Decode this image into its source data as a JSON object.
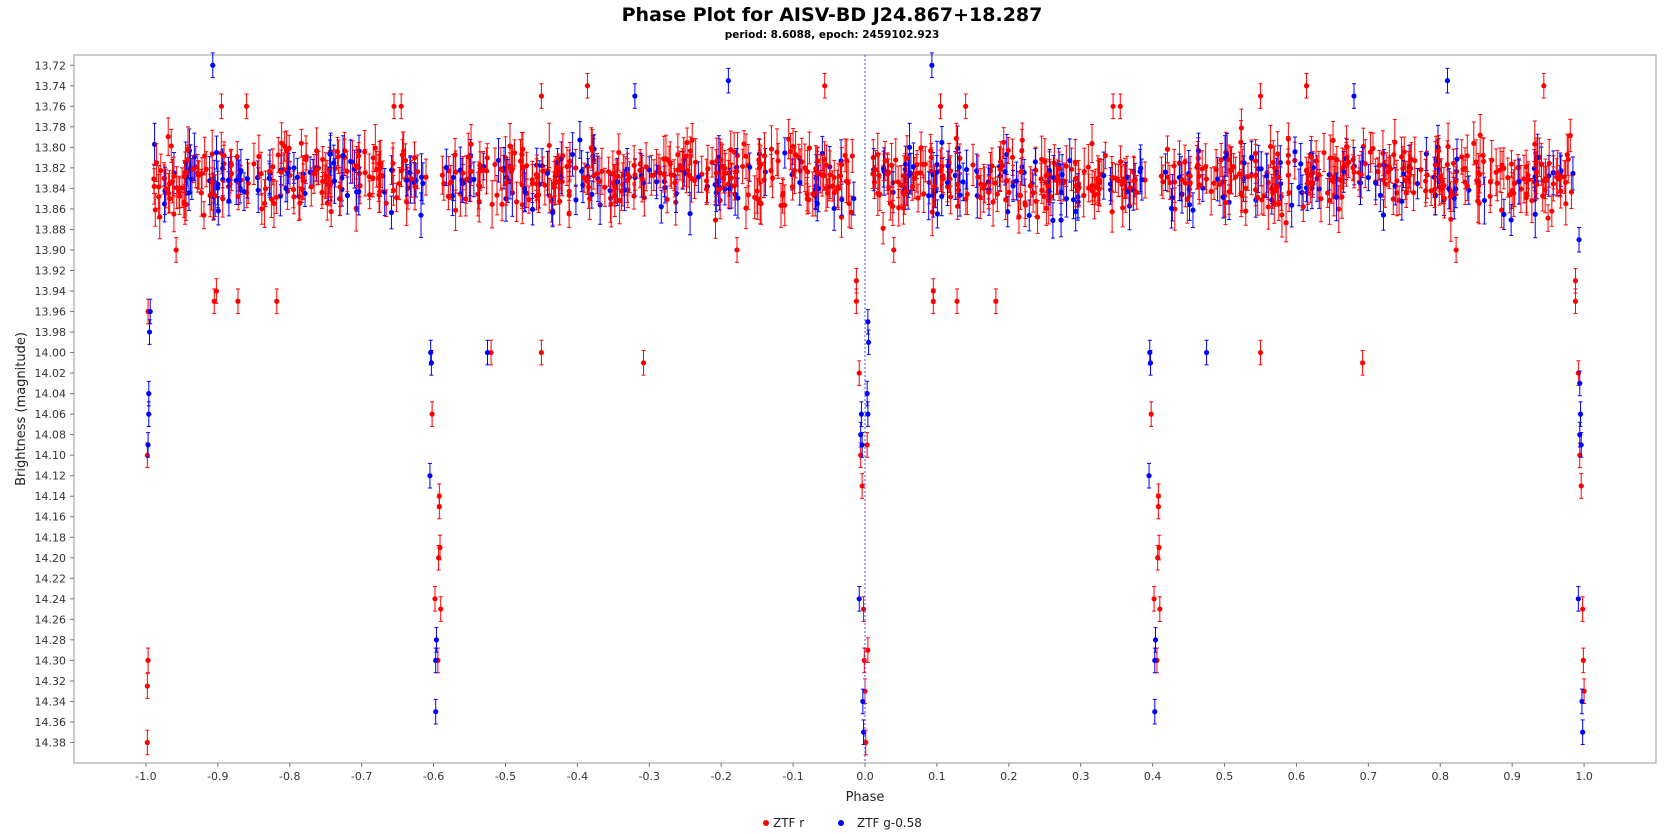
{
  "chart_data": {
    "type": "scatter",
    "title": "Phase Plot for AISV-BD J24.867+18.287",
    "subtitle": "period: 8.6088, epoch: 2459102.923",
    "xlabel": "Phase",
    "ylabel": "Brightness (magnitude)",
    "xlim": [
      -1.1,
      1.1
    ],
    "ylim": [
      14.4,
      13.71
    ],
    "y_inverted": true,
    "xticks": [
      -1.0,
      -0.9,
      -0.8,
      -0.7,
      -0.6,
      -0.5,
      -0.4,
      -0.3,
      -0.2,
      -0.1,
      0.0,
      0.1,
      0.2,
      0.3,
      0.4,
      0.5,
      0.6,
      0.7,
      0.8,
      0.9,
      1.0
    ],
    "xtick_labels": [
      "-1.0",
      "-0.9",
      "-0.8",
      "-0.7",
      "-0.6",
      "-0.5",
      "-0.4",
      "-0.3",
      "-0.2",
      "-0.1",
      "0.0",
      "0.1",
      "0.2",
      "0.3",
      "0.4",
      "0.5",
      "0.6",
      "0.7",
      "0.8",
      "0.9",
      "1.0"
    ],
    "yticks": [
      13.72,
      13.74,
      13.76,
      13.78,
      13.8,
      13.82,
      13.84,
      13.86,
      13.88,
      13.9,
      13.92,
      13.94,
      13.96,
      13.98,
      14.0,
      14.02,
      14.04,
      14.06,
      14.08,
      14.1,
      14.12,
      14.14,
      14.16,
      14.18,
      14.2,
      14.22,
      14.24,
      14.26,
      14.28,
      14.3,
      14.32,
      14.34,
      14.36,
      14.38
    ],
    "ytick_labels": [
      "13.72",
      "13.74",
      "13.76",
      "13.78",
      "13.80",
      "13.82",
      "13.84",
      "13.86",
      "13.88",
      "13.90",
      "13.92",
      "13.94",
      "13.96",
      "13.98",
      "14.00",
      "14.02",
      "14.04",
      "14.06",
      "14.08",
      "14.10",
      "14.12",
      "14.14",
      "14.16",
      "14.18",
      "14.20",
      "14.22",
      "14.24",
      "14.26",
      "14.28",
      "14.30",
      "14.32",
      "14.34",
      "14.36",
      "14.38"
    ],
    "reference_line_x": 0.0,
    "legend_position": "bottom-center",
    "baseline": {
      "mag_mean": 13.83,
      "mag_spread": 0.03,
      "error_bar": 0.018,
      "r_points_per_phase": 420,
      "g_points_per_phase": 160,
      "gaps": [
        [
          -0.61,
          -0.59
        ],
        [
          -0.01,
          0.01
        ],
        [
          0.39,
          0.41
        ]
      ]
    },
    "series": [
      {
        "name": "ZTF r",
        "color": "#ff0000",
        "points": [
          [
            -0.997,
            13.96,
            0.012
          ],
          [
            -0.998,
            14.1,
            0.012
          ],
          [
            -0.997,
            14.3,
            0.012
          ],
          [
            -0.998,
            14.325,
            0.012
          ],
          [
            -0.998,
            14.38,
            0.012
          ],
          [
            -0.958,
            13.9,
            0.012
          ],
          [
            -0.902,
            13.94,
            0.012
          ],
          [
            -0.905,
            13.95,
            0.012
          ],
          [
            -0.872,
            13.95,
            0.012
          ],
          [
            -0.818,
            13.95,
            0.012
          ],
          [
            -0.895,
            13.76,
            0.012
          ],
          [
            -0.86,
            13.76,
            0.012
          ],
          [
            -0.655,
            13.76,
            0.012
          ],
          [
            -0.645,
            13.76,
            0.012
          ],
          [
            -0.45,
            13.75,
            0.012
          ],
          [
            -0.386,
            13.74,
            0.012
          ],
          [
            -0.056,
            13.74,
            0.012
          ],
          [
            -0.178,
            13.9,
            0.012
          ],
          [
            -0.602,
            14.06,
            0.012
          ],
          [
            -0.598,
            14.24,
            0.012
          ],
          [
            -0.593,
            14.2,
            0.012
          ],
          [
            -0.591,
            14.19,
            0.012
          ],
          [
            -0.592,
            14.15,
            0.012
          ],
          [
            -0.592,
            14.14,
            0.012
          ],
          [
            -0.59,
            14.25,
            0.012
          ],
          [
            -0.594,
            14.3,
            0.012
          ],
          [
            -0.52,
            14.0,
            0.012
          ],
          [
            -0.45,
            14.0,
            0.012
          ],
          [
            -0.308,
            14.01,
            0.012
          ],
          [
            -0.012,
            13.93,
            0.012
          ],
          [
            -0.012,
            13.95,
            0.012
          ],
          [
            -0.008,
            14.02,
            0.012
          ],
          [
            -0.006,
            14.1,
            0.012
          ],
          [
            -0.004,
            14.13,
            0.012
          ],
          [
            -0.002,
            14.25,
            0.012
          ],
          [
            -0.001,
            14.3,
            0.012
          ],
          [
            0.0,
            14.33,
            0.012
          ],
          [
            0.001,
            14.38,
            0.012
          ],
          [
            0.003,
            14.09,
            0.012
          ],
          [
            0.004,
            14.29,
            0.012
          ],
          [
            0.04,
            13.9,
            0.012
          ],
          [
            0.095,
            13.94,
            0.012
          ],
          [
            0.095,
            13.95,
            0.012
          ],
          [
            0.128,
            13.95,
            0.012
          ],
          [
            0.182,
            13.95,
            0.012
          ],
          [
            0.105,
            13.76,
            0.012
          ],
          [
            0.14,
            13.76,
            0.012
          ],
          [
            0.345,
            13.76,
            0.012
          ],
          [
            0.355,
            13.76,
            0.012
          ],
          [
            0.55,
            13.75,
            0.012
          ],
          [
            0.614,
            13.74,
            0.012
          ],
          [
            0.944,
            13.74,
            0.012
          ],
          [
            0.822,
            13.9,
            0.012
          ],
          [
            0.398,
            14.06,
            0.012
          ],
          [
            0.402,
            14.24,
            0.012
          ],
          [
            0.407,
            14.2,
            0.012
          ],
          [
            0.409,
            14.19,
            0.012
          ],
          [
            0.408,
            14.15,
            0.012
          ],
          [
            0.408,
            14.14,
            0.012
          ],
          [
            0.41,
            14.25,
            0.012
          ],
          [
            0.406,
            14.3,
            0.012
          ],
          [
            0.55,
            14.0,
            0.012
          ],
          [
            0.692,
            14.01,
            0.012
          ],
          [
            0.988,
            13.93,
            0.012
          ],
          [
            0.988,
            13.95,
            0.012
          ],
          [
            0.992,
            14.02,
            0.012
          ],
          [
            0.994,
            14.1,
            0.012
          ],
          [
            0.996,
            14.13,
            0.012
          ],
          [
            0.998,
            14.25,
            0.012
          ],
          [
            0.999,
            14.3,
            0.012
          ],
          [
            1.0,
            14.33,
            0.012
          ]
        ]
      },
      {
        "name": "ZTF g-0.58",
        "color": "#0000ff",
        "points": [
          [
            -0.994,
            13.96,
            0.012
          ],
          [
            -0.995,
            13.98,
            0.012
          ],
          [
            -0.996,
            14.04,
            0.012
          ],
          [
            -0.996,
            14.06,
            0.012
          ],
          [
            -0.997,
            14.09,
            0.012
          ],
          [
            -0.907,
            13.72,
            0.012
          ],
          [
            -0.19,
            13.735,
            0.012
          ],
          [
            -0.32,
            13.75,
            0.012
          ],
          [
            -0.604,
            14.0,
            0.012
          ],
          [
            -0.603,
            14.01,
            0.012
          ],
          [
            -0.605,
            14.12,
            0.012
          ],
          [
            -0.596,
            14.28,
            0.012
          ],
          [
            -0.597,
            14.3,
            0.012
          ],
          [
            -0.597,
            14.35,
            0.012
          ],
          [
            -0.525,
            14.0,
            0.012
          ],
          [
            -0.008,
            14.24,
            0.012
          ],
          [
            -0.006,
            14.08,
            0.012
          ],
          [
            -0.005,
            14.06,
            0.012
          ],
          [
            -0.004,
            14.09,
            0.012
          ],
          [
            -0.003,
            14.34,
            0.012
          ],
          [
            -0.002,
            14.37,
            0.012
          ],
          [
            0.004,
            13.97,
            0.012
          ],
          [
            0.005,
            13.99,
            0.012
          ],
          [
            0.003,
            14.04,
            0.012
          ],
          [
            0.004,
            14.06,
            0.012
          ],
          [
            0.093,
            13.72,
            0.012
          ],
          [
            0.81,
            13.735,
            0.012
          ],
          [
            0.68,
            13.75,
            0.012
          ],
          [
            0.396,
            14.0,
            0.012
          ],
          [
            0.397,
            14.01,
            0.012
          ],
          [
            0.395,
            14.12,
            0.012
          ],
          [
            0.404,
            14.28,
            0.012
          ],
          [
            0.403,
            14.3,
            0.012
          ],
          [
            0.403,
            14.35,
            0.012
          ],
          [
            0.475,
            14.0,
            0.012
          ],
          [
            0.992,
            14.24,
            0.012
          ],
          [
            0.994,
            14.08,
            0.012
          ],
          [
            0.995,
            14.06,
            0.012
          ],
          [
            0.996,
            14.09,
            0.012
          ],
          [
            0.997,
            14.34,
            0.012
          ],
          [
            0.998,
            14.37,
            0.012
          ],
          [
            0.994,
            14.03,
            0.012
          ],
          [
            0.993,
            13.89,
            0.012
          ]
        ]
      }
    ]
  }
}
